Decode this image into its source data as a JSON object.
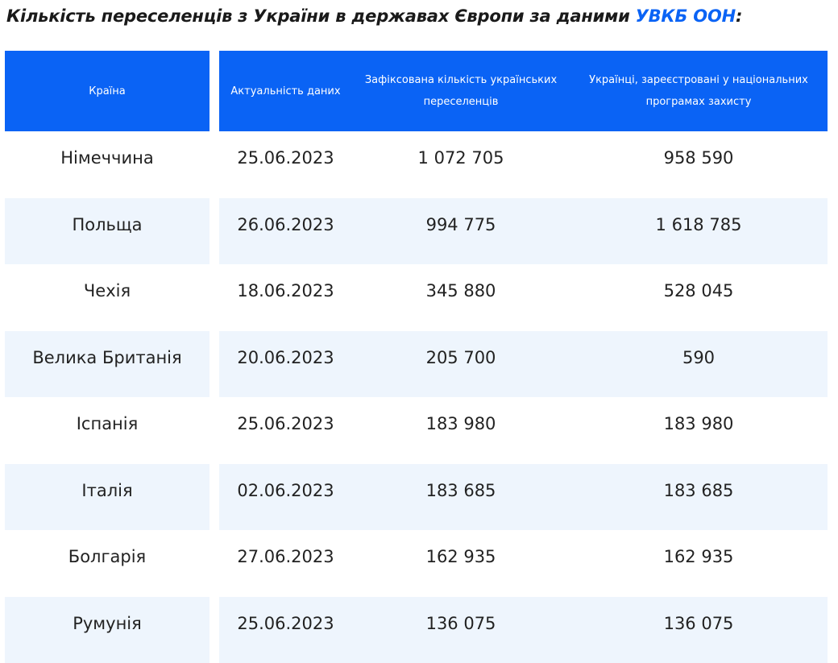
{
  "title": {
    "text": "Кількість переселенців з України в державах Європи за даними",
    "link": "УВКБ ООН",
    "end": ":"
  },
  "table": {
    "headers": [
      "Країна",
      "Актуальність даних",
      "Зафіксована кількість українських переселенців",
      "Українці, зареєстровані у національних програмах захисту"
    ],
    "rows": [
      [
        "Німеччина",
        "25.06.2023",
        "1 072 705",
        "958 590"
      ],
      [
        "Польща",
        "26.06.2023",
        "994 775",
        "1 618 785"
      ],
      [
        "Чехія",
        "18.06.2023",
        "345 880",
        "528 045"
      ],
      [
        "Велика Британія",
        "20.06.2023",
        "205 700",
        "590"
      ],
      [
        "Іспанія",
        "25.06.2023",
        "183 980",
        "183 980"
      ],
      [
        "Італія",
        "02.06.2023",
        "183 685",
        "183 685"
      ],
      [
        "Болгарія",
        "27.06.2023",
        "162 935",
        "162 935"
      ],
      [
        "Румунія",
        "25.06.2023",
        "136 075",
        "136 075"
      ]
    ]
  }
}
